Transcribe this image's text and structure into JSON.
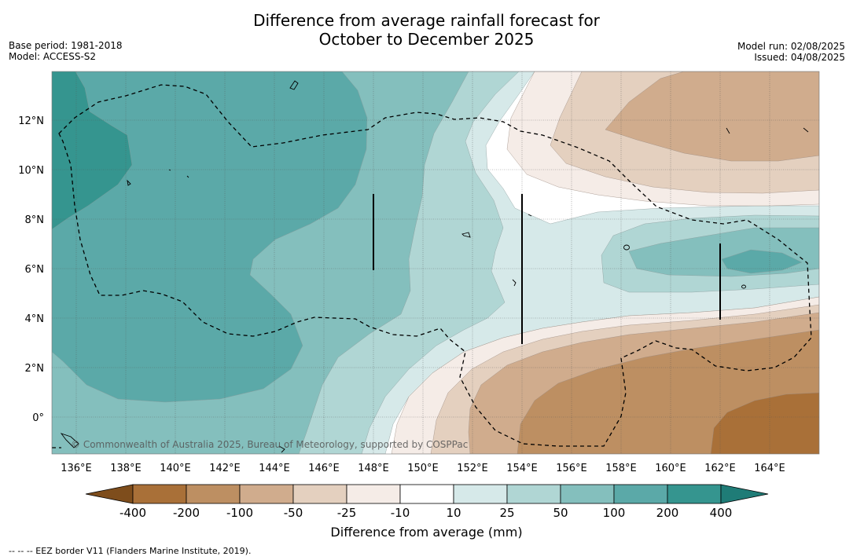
{
  "title": {
    "line1": "Difference from average rainfall forecast for",
    "line2": "October to December 2025"
  },
  "meta_left": {
    "base_period": "Base period: 1981-2018",
    "model": "Model: ACCESS-S2"
  },
  "meta_right": {
    "model_run": "Model run: 02/08/2025",
    "issued": "Issued: 04/08/2025"
  },
  "map": {
    "lon_labels": [
      "136°E",
      "138°E",
      "140°E",
      "142°E",
      "144°E",
      "146°E",
      "148°E",
      "150°E",
      "152°E",
      "154°E",
      "156°E",
      "158°E",
      "160°E",
      "162°E",
      "164°E"
    ],
    "lat_labels": [
      "12°N",
      "10°N",
      "8°N",
      "6°N",
      "4°N",
      "2°N",
      "0°"
    ],
    "copyright": "© Commonwealth of Australia 2025, Bureau of Meteorology, supported by COSPPac"
  },
  "colorbar": {
    "tick_labels": [
      "-400",
      "-200",
      "-100",
      "-50",
      "-25",
      "-10",
      "10",
      "25",
      "50",
      "100",
      "200",
      "400"
    ],
    "colors": [
      "#7e4d1c",
      "#a97038",
      "#bd8f62",
      "#d0ac8d",
      "#e4d0bf",
      "#f5ece7",
      "#ffffff",
      "#d6e9e9",
      "#b0d6d4",
      "#84bfbd",
      "#5ba9a8",
      "#35958f",
      "#1f7c77"
    ],
    "title": "Difference from average (mm)"
  },
  "footer": "--  --  -- EEZ border V11 (Flanders Marine Institute, 2019)."
}
